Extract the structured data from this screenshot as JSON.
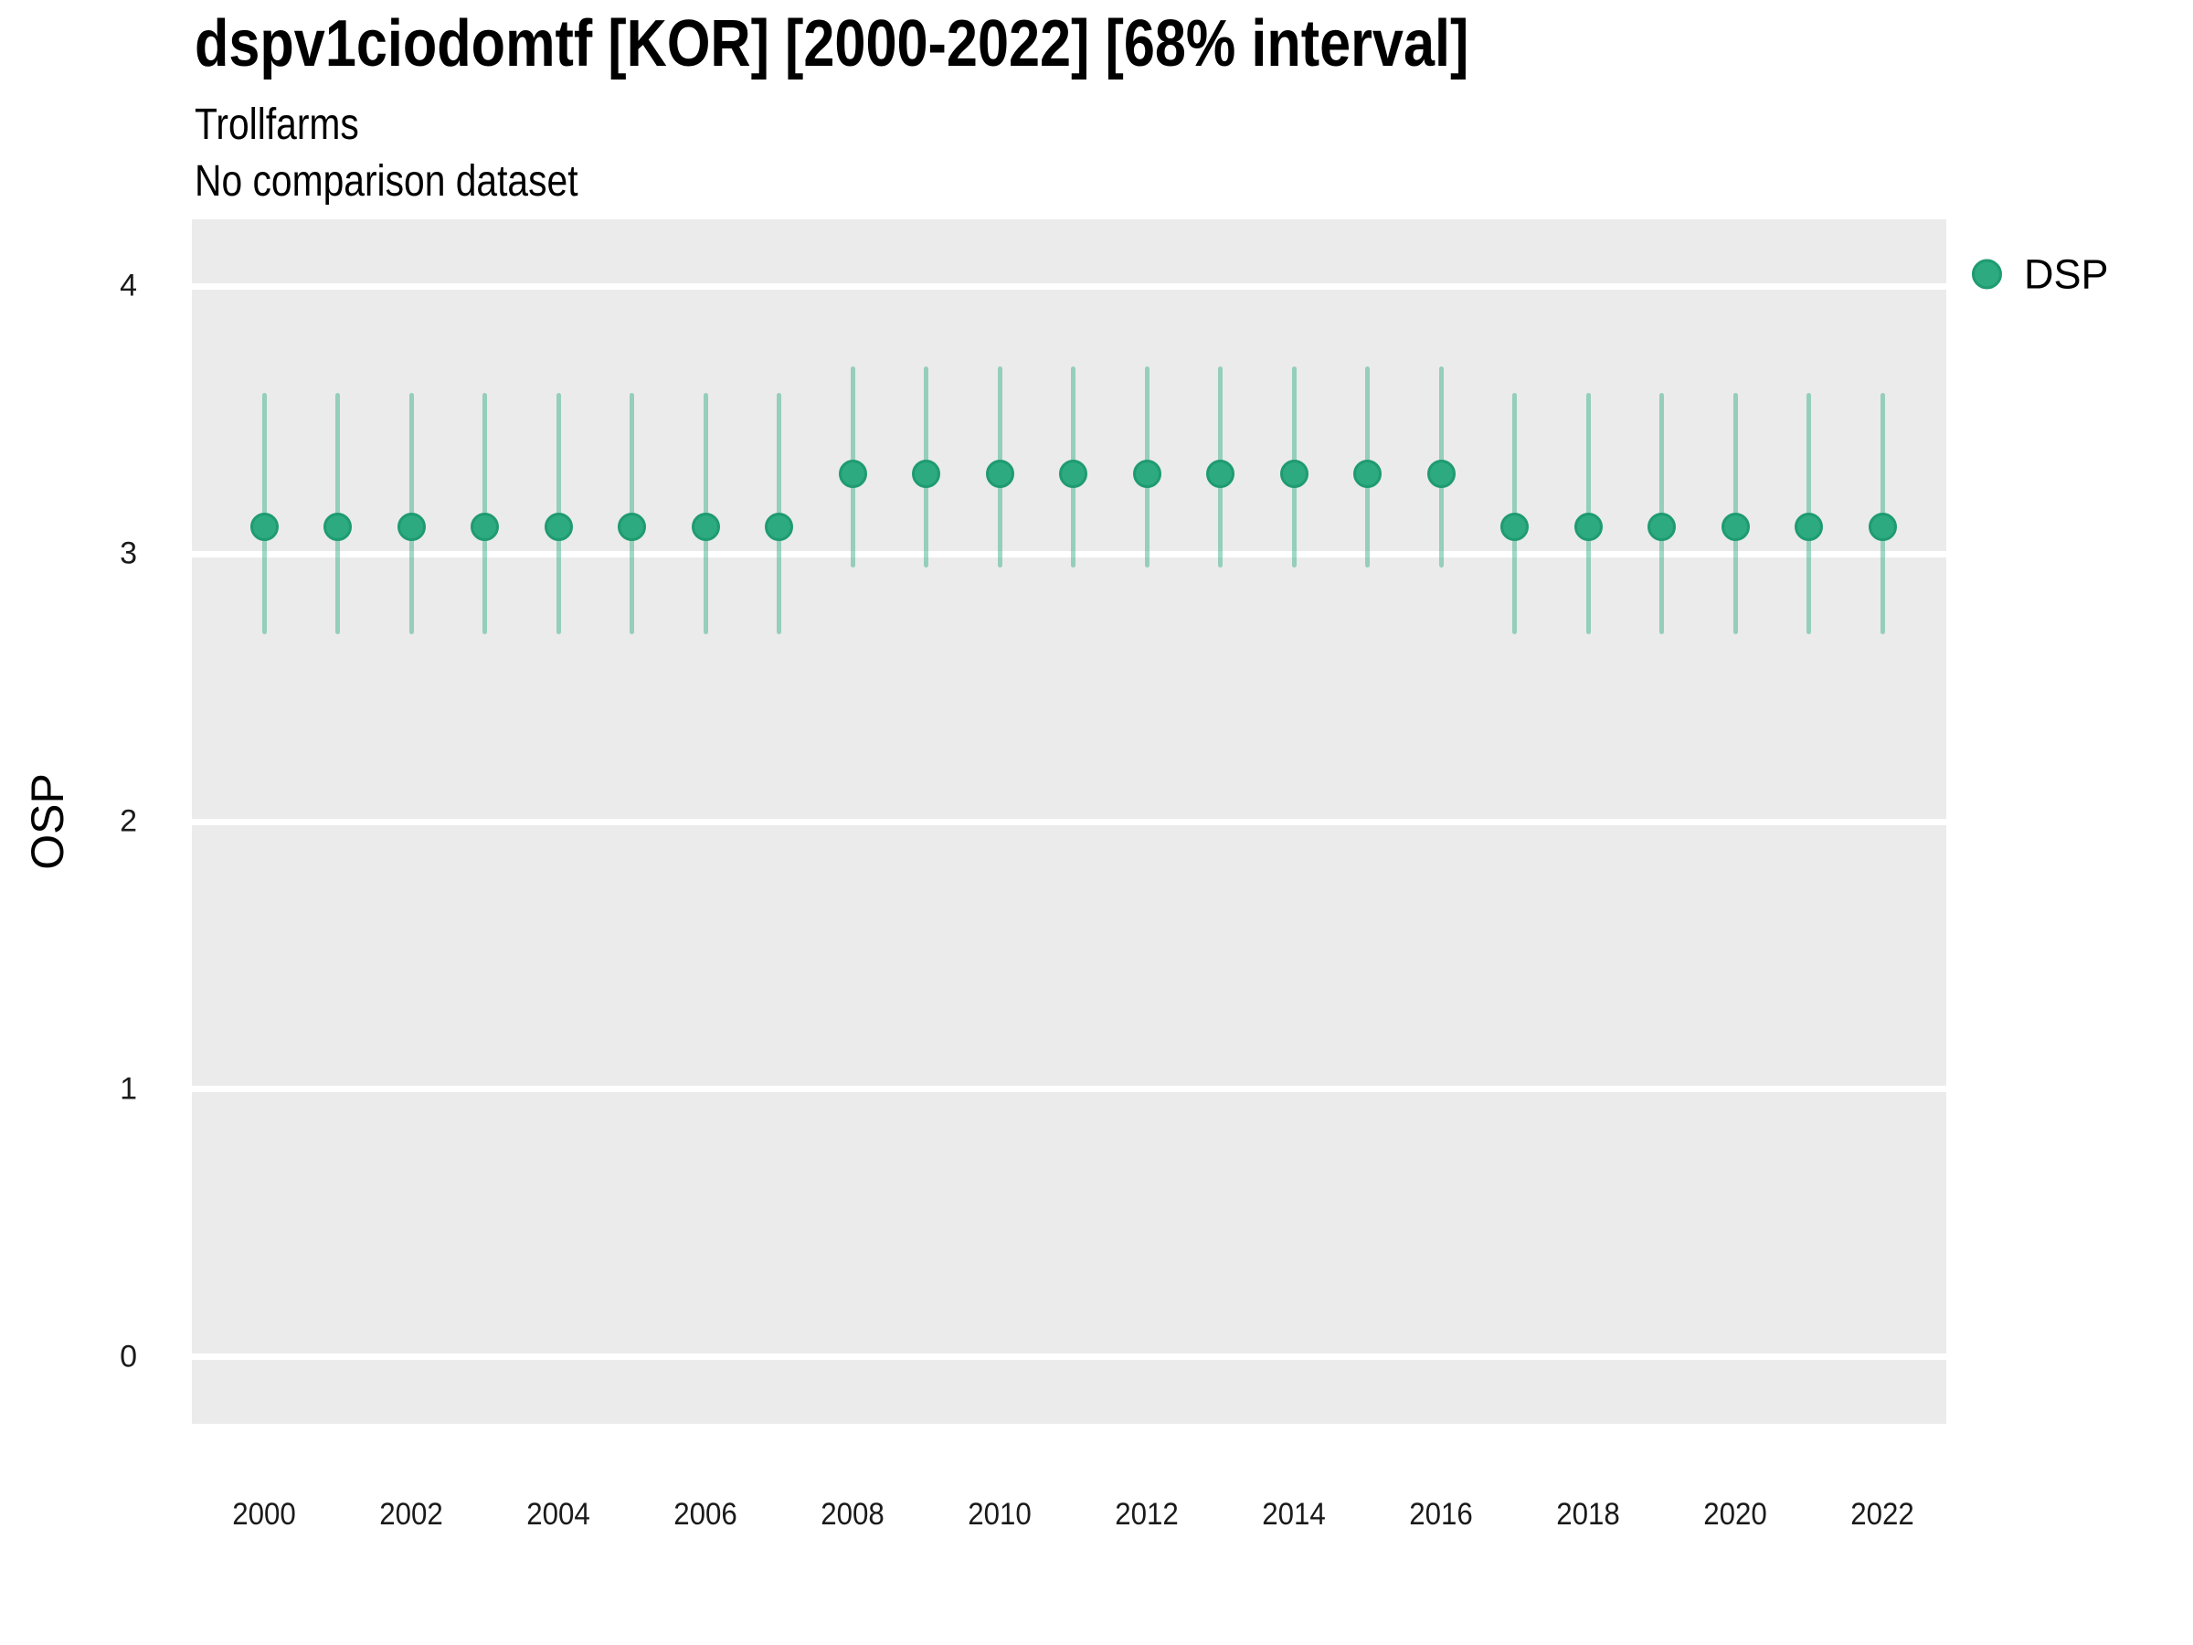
{
  "figure": {
    "title": "dspv1ciodomtf [KOR] [2000-2022] [68% interval]",
    "subtitle": "Trollfarms",
    "comparison_note": "No comparison dataset"
  },
  "legend": {
    "position": "right",
    "items": [
      {
        "label": "DSP",
        "color": "#2daa80",
        "edge_color": "#1f9b70"
      }
    ]
  },
  "axes": {
    "y_title": "OSP",
    "x_title": ""
  },
  "colors": {
    "panel_background": "#ebebeb",
    "gridline": "#ffffff",
    "point_fill": "#2daa80",
    "point_edge": "#1f9b70",
    "interval": "rgba(45,170,128,0.45)",
    "tick_text": "#1a1a1a",
    "title_text": "#000000"
  },
  "chart_data": {
    "type": "pointrange",
    "title": "dspv1ciodomtf [KOR] [2000-2022] [68% interval]",
    "subtitle": "Trollfarms",
    "note": "No comparison dataset",
    "interval_level": "68%",
    "xlabel": "",
    "ylabel": "OSP",
    "ylim": [
      -0.25,
      4.25
    ],
    "yticks": [
      0,
      1,
      2,
      3,
      4
    ],
    "xticks": [
      2000,
      2002,
      2004,
      2006,
      2008,
      2010,
      2012,
      2014,
      2016,
      2018,
      2020,
      2022
    ],
    "grid": "horizontal-major-only",
    "legend_position": "right",
    "series": [
      {
        "name": "DSP",
        "color": "#2daa80",
        "point_edge_color": "#1f9b70",
        "interval_color": "rgba(45,170,128,0.45)",
        "points": [
          {
            "year": 2000,
            "value": 3.1,
            "lower": 2.7,
            "upper": 3.6
          },
          {
            "year": 2001,
            "value": 3.1,
            "lower": 2.7,
            "upper": 3.6
          },
          {
            "year": 2002,
            "value": 3.1,
            "lower": 2.7,
            "upper": 3.6
          },
          {
            "year": 2003,
            "value": 3.1,
            "lower": 2.7,
            "upper": 3.6
          },
          {
            "year": 2004,
            "value": 3.1,
            "lower": 2.7,
            "upper": 3.6
          },
          {
            "year": 2005,
            "value": 3.1,
            "lower": 2.7,
            "upper": 3.6
          },
          {
            "year": 2006,
            "value": 3.1,
            "lower": 2.7,
            "upper": 3.6
          },
          {
            "year": 2007,
            "value": 3.1,
            "lower": 2.7,
            "upper": 3.6
          },
          {
            "year": 2008,
            "value": 3.3,
            "lower": 2.95,
            "upper": 3.7
          },
          {
            "year": 2009,
            "value": 3.3,
            "lower": 2.95,
            "upper": 3.7
          },
          {
            "year": 2010,
            "value": 3.3,
            "lower": 2.95,
            "upper": 3.7
          },
          {
            "year": 2011,
            "value": 3.3,
            "lower": 2.95,
            "upper": 3.7
          },
          {
            "year": 2012,
            "value": 3.3,
            "lower": 2.95,
            "upper": 3.7
          },
          {
            "year": 2013,
            "value": 3.3,
            "lower": 2.95,
            "upper": 3.7
          },
          {
            "year": 2014,
            "value": 3.3,
            "lower": 2.95,
            "upper": 3.7
          },
          {
            "year": 2015,
            "value": 3.3,
            "lower": 2.95,
            "upper": 3.7
          },
          {
            "year": 2016,
            "value": 3.3,
            "lower": 2.95,
            "upper": 3.7
          },
          {
            "year": 2017,
            "value": 3.1,
            "lower": 2.7,
            "upper": 3.6
          },
          {
            "year": 2018,
            "value": 3.1,
            "lower": 2.7,
            "upper": 3.6
          },
          {
            "year": 2019,
            "value": 3.1,
            "lower": 2.7,
            "upper": 3.6
          },
          {
            "year": 2020,
            "value": 3.1,
            "lower": 2.7,
            "upper": 3.6
          },
          {
            "year": 2021,
            "value": 3.1,
            "lower": 2.7,
            "upper": 3.6
          },
          {
            "year": 2022,
            "value": 3.1,
            "lower": 2.7,
            "upper": 3.6
          }
        ]
      }
    ]
  }
}
